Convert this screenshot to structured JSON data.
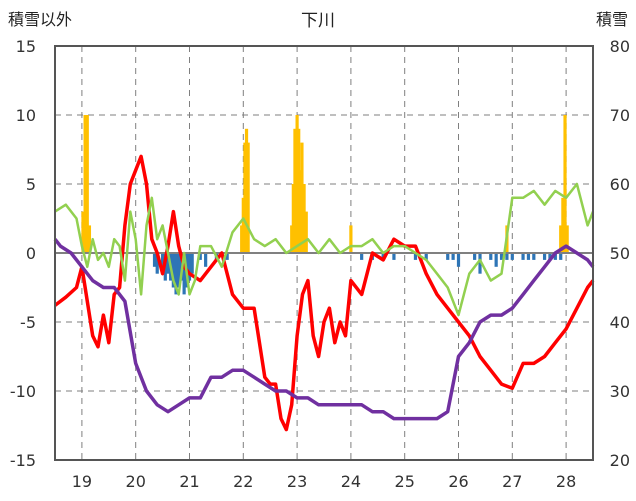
{
  "chart_data": {
    "type": "line",
    "title": "下川",
    "ylabel_left": "積雪以外",
    "ylabel_right": "積雪",
    "ylim_left": [
      -15,
      15
    ],
    "yticks_left": [
      15,
      10,
      5,
      0,
      -5,
      -10,
      -15
    ],
    "ylim_right": [
      20,
      80
    ],
    "yticks_right": [
      80,
      70,
      60,
      50,
      40,
      30,
      20
    ],
    "xlim": [
      18.5,
      28.5
    ],
    "xticks": [
      19,
      20,
      21,
      22,
      23,
      24,
      25,
      26,
      27,
      28
    ],
    "grid": true,
    "colors": {
      "red_line": "#ff0000",
      "green_line": "#92d050",
      "purple_line": "#7030a0",
      "bars_positive": "#ffc000",
      "bars_negative": "#2e75b6",
      "zero_line": "#808080"
    },
    "series": [
      {
        "axis": "left",
        "color": "#ff0000",
        "x": [
          18.5,
          18.7,
          18.9,
          19.0,
          19.1,
          19.2,
          19.3,
          19.4,
          19.5,
          19.6,
          19.7,
          19.8,
          19.9,
          20.0,
          20.1,
          20.2,
          20.3,
          20.4,
          20.5,
          20.6,
          20.7,
          20.8,
          20.9,
          21.0,
          21.2,
          21.4,
          21.6,
          21.8,
          22.0,
          22.2,
          22.4,
          22.5,
          22.6,
          22.7,
          22.8,
          22.9,
          23.0,
          23.1,
          23.2,
          23.3,
          23.4,
          23.5,
          23.6,
          23.7,
          23.8,
          23.9,
          24.0,
          24.2,
          24.4,
          24.6,
          24.8,
          25.0,
          25.2,
          25.4,
          25.6,
          25.8,
          26.0,
          26.2,
          26.4,
          26.6,
          26.8,
          27.0,
          27.2,
          27.4,
          27.6,
          27.8,
          28.0,
          28.2,
          28.4,
          28.5
        ],
        "y": [
          -3.8,
          -3.2,
          -2.5,
          -1.0,
          -3.5,
          -6.0,
          -6.8,
          -4.5,
          -6.5,
          -3.0,
          -2.5,
          2.0,
          5.0,
          6.0,
          7.0,
          5.0,
          1.0,
          0.0,
          -1.5,
          0.5,
          3.0,
          0.5,
          -1.0,
          -1.5,
          -2.0,
          -1.0,
          0.0,
          -3.0,
          -4.0,
          -4.0,
          -9.0,
          -9.5,
          -9.5,
          -12.0,
          -12.8,
          -11.0,
          -6.0,
          -3.0,
          -2.0,
          -6.0,
          -7.5,
          -5.0,
          -4.0,
          -6.5,
          -5.0,
          -6.0,
          -2.0,
          -3.0,
          0.0,
          -0.5,
          1.0,
          0.5,
          0.5,
          -1.5,
          -3.0,
          -4.0,
          -5.0,
          -6.0,
          -7.5,
          -8.5,
          -9.5,
          -9.8,
          -8.0,
          -8.0,
          -7.5,
          -6.5,
          -5.5,
          -4.0,
          -2.5,
          -2.0
        ]
      },
      {
        "axis": "left",
        "color": "#92d050",
        "x": [
          18.5,
          18.7,
          18.9,
          19.0,
          19.1,
          19.2,
          19.3,
          19.4,
          19.5,
          19.6,
          19.7,
          19.8,
          19.9,
          20.0,
          20.1,
          20.2,
          20.3,
          20.4,
          20.5,
          20.6,
          20.7,
          20.8,
          20.9,
          21.0,
          21.1,
          21.2,
          21.4,
          21.6,
          21.8,
          22.0,
          22.2,
          22.4,
          22.6,
          22.8,
          23.0,
          23.2,
          23.4,
          23.6,
          23.8,
          24.0,
          24.2,
          24.4,
          24.6,
          24.8,
          25.0,
          25.2,
          25.4,
          25.6,
          25.8,
          26.0,
          26.2,
          26.4,
          26.6,
          26.8,
          27.0,
          27.2,
          27.4,
          27.6,
          27.8,
          28.0,
          28.2,
          28.4,
          28.5
        ],
        "y": [
          3.0,
          3.5,
          2.5,
          0.5,
          -1.0,
          1.0,
          -0.5,
          0.0,
          -1.0,
          1.0,
          0.5,
          -2.0,
          3.0,
          1.0,
          -3.0,
          2.0,
          4.0,
          1.0,
          2.0,
          0.0,
          -2.0,
          -3.0,
          0.0,
          -3.0,
          -2.0,
          0.5,
          0.5,
          -1.0,
          1.5,
          2.5,
          1.0,
          0.5,
          1.0,
          0.0,
          0.5,
          1.0,
          0.0,
          1.0,
          0.0,
          0.5,
          0.5,
          1.0,
          0.0,
          0.5,
          0.5,
          0.0,
          -0.5,
          -1.5,
          -2.5,
          -4.5,
          -1.5,
          -0.5,
          -2.0,
          -1.5,
          4.0,
          4.0,
          4.5,
          3.5,
          4.5,
          4.0,
          5.0,
          2.0,
          3.0
        ]
      },
      {
        "axis": "right",
        "color": "#7030a0",
        "x": [
          18.5,
          18.6,
          18.8,
          19.0,
          19.2,
          19.4,
          19.6,
          19.8,
          20.0,
          20.2,
          20.4,
          20.6,
          20.8,
          21.0,
          21.2,
          21.4,
          21.6,
          21.8,
          22.0,
          22.2,
          22.4,
          22.6,
          22.8,
          23.0,
          23.2,
          23.4,
          23.6,
          23.8,
          24.0,
          24.2,
          24.4,
          24.6,
          24.8,
          25.0,
          25.2,
          25.4,
          25.6,
          25.8,
          26.0,
          26.2,
          26.4,
          26.6,
          26.8,
          27.0,
          27.2,
          27.4,
          27.6,
          27.8,
          28.0,
          28.2,
          28.4,
          28.5
        ],
        "y": [
          52.0,
          51.0,
          50.0,
          48.0,
          46.0,
          45.0,
          45.0,
          43.0,
          34.0,
          30.0,
          28.0,
          27.0,
          28.0,
          29.0,
          29.0,
          32.0,
          32.0,
          33.0,
          33.0,
          32.0,
          31.0,
          30.0,
          30.0,
          29.0,
          29.0,
          28.0,
          28.0,
          28.0,
          28.0,
          28.0,
          27.0,
          27.0,
          26.0,
          26.0,
          26.0,
          26.0,
          26.0,
          27.0,
          35.0,
          37.0,
          40.0,
          41.0,
          41.0,
          42.0,
          44.0,
          46.0,
          48.0,
          50.0,
          51.0,
          50.0,
          49.0,
          48.0
        ]
      },
      {
        "axis": "left",
        "type": "bar",
        "color": "#ffc000",
        "x": [
          19.02,
          19.06,
          19.1,
          19.14,
          21.97,
          22.0,
          22.03,
          22.06,
          22.09,
          22.9,
          22.93,
          22.96,
          23.0,
          23.03,
          23.06,
          23.09,
          23.13,
          23.17,
          24.0,
          26.9,
          27.9,
          27.94,
          27.98,
          28.02
        ],
        "y": [
          3.0,
          10.0,
          10.0,
          2.0,
          2.0,
          4.0,
          8.0,
          9.0,
          8.0,
          2.0,
          5.0,
          9.0,
          10.0,
          9.0,
          6.0,
          8.0,
          5.0,
          3.0,
          2.0,
          2.0,
          2.0,
          4.0,
          10.0,
          2.0
        ]
      },
      {
        "axis": "left",
        "type": "bar",
        "color": "#2e75b6",
        "x": [
          20.35,
          20.4,
          20.5,
          20.55,
          20.6,
          20.65,
          20.7,
          20.75,
          20.8,
          20.85,
          20.9,
          20.95,
          21.0,
          21.05,
          21.2,
          21.3,
          21.5,
          21.7,
          24.2,
          24.4,
          24.6,
          24.8,
          25.2,
          25.4,
          25.8,
          25.9,
          26.0,
          26.3,
          26.4,
          26.6,
          26.7,
          26.8,
          26.9,
          27.0,
          27.2,
          27.3,
          27.4,
          27.6,
          27.7,
          27.8,
          27.9
        ],
        "y": [
          -1.0,
          -1.5,
          -1.0,
          -2.0,
          -1.5,
          -2.0,
          -2.5,
          -3.0,
          -2.5,
          -2.0,
          -3.0,
          -2.5,
          -2.0,
          -1.5,
          -0.5,
          -1.0,
          -0.5,
          -0.5,
          -0.5,
          -0.5,
          -0.5,
          -0.5,
          -0.5,
          -0.5,
          -0.5,
          -0.5,
          -1.0,
          -0.5,
          -1.5,
          -0.5,
          -1.0,
          -0.5,
          -0.5,
          -0.5,
          -0.5,
          -0.5,
          -0.5,
          -0.5,
          -0.5,
          -0.5,
          -0.5
        ]
      }
    ]
  }
}
